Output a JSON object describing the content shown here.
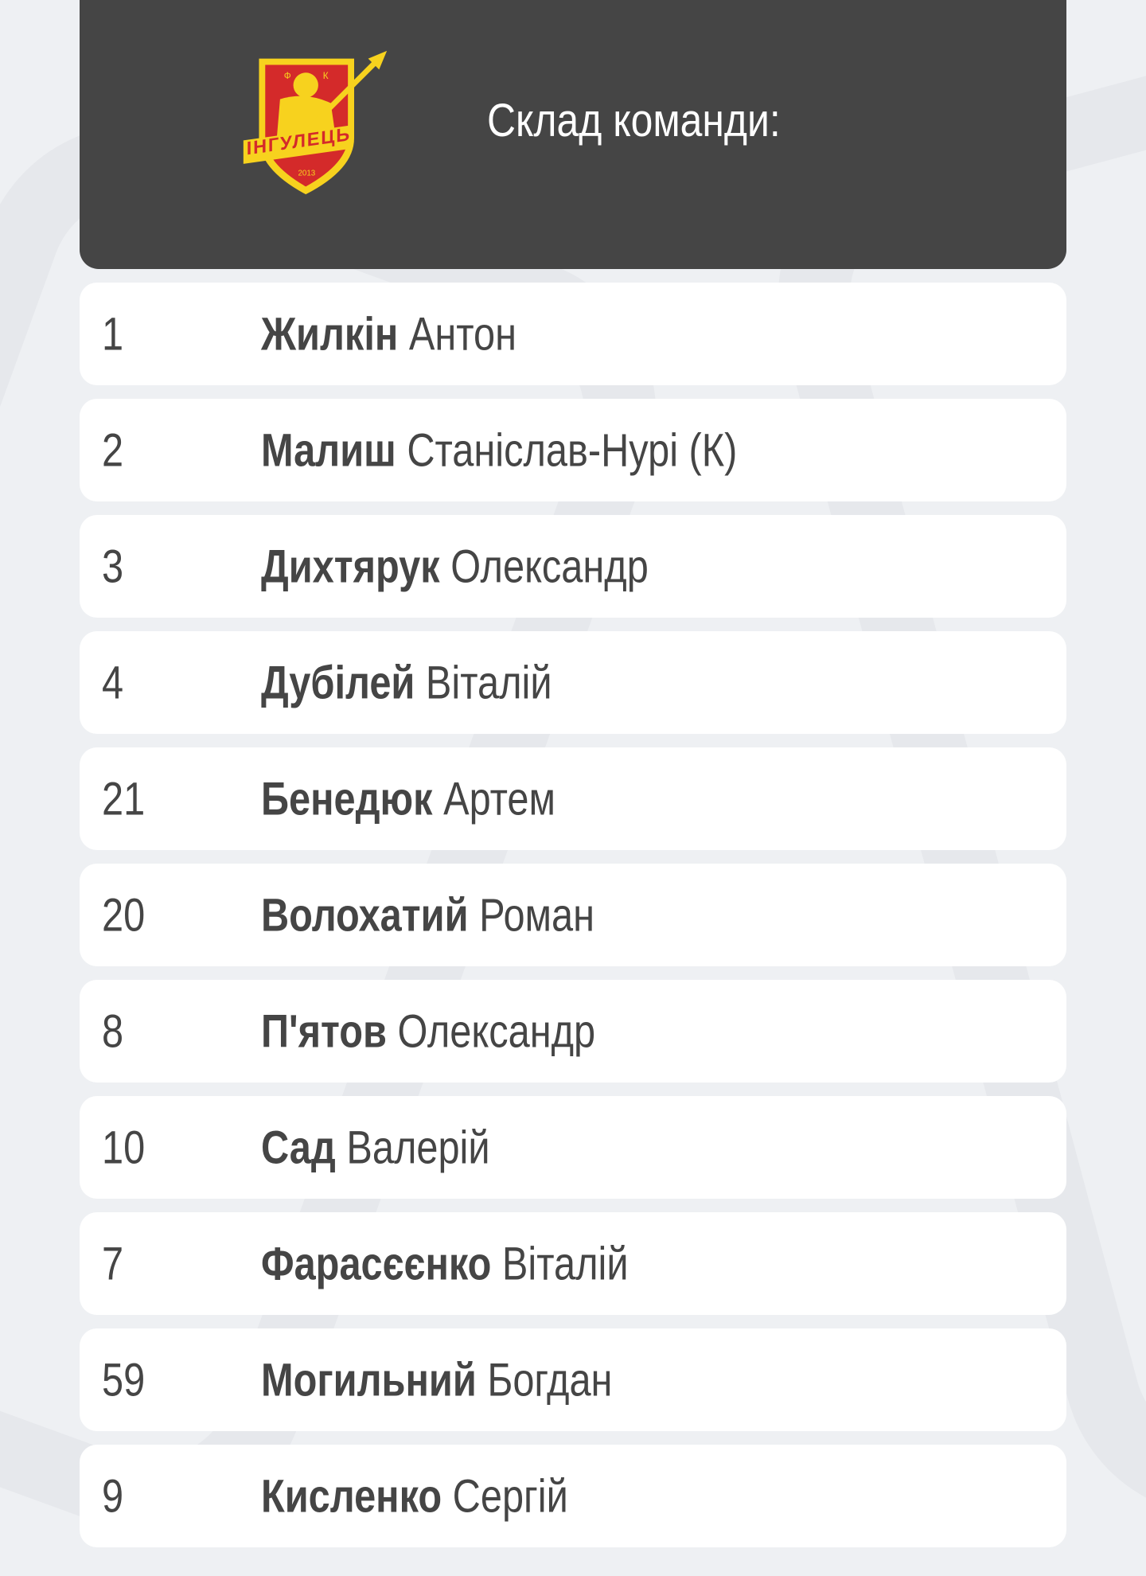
{
  "header": {
    "title": "Склад команди:",
    "logo": {
      "text": "ІНГУЛЕЦЬ",
      "initials": "Ф К",
      "year": "2013",
      "colors": {
        "red": "#d42a2a",
        "yellow": "#f7d21e"
      }
    }
  },
  "players": [
    {
      "number": "1",
      "surname": "Жилкін",
      "first_name": "Антон"
    },
    {
      "number": "2",
      "surname": "Малиш",
      "first_name": "Станіслав-Нурі (К)"
    },
    {
      "number": "3",
      "surname": "Дихтярук",
      "first_name": "Олександр"
    },
    {
      "number": "4",
      "surname": "Дубілей",
      "first_name": "Віталій"
    },
    {
      "number": "21",
      "surname": "Бенедюк",
      "first_name": "Артем"
    },
    {
      "number": "20",
      "surname": "Волохатий",
      "first_name": "Роман"
    },
    {
      "number": "8",
      "surname": "П'ятов",
      "first_name": "Олександр"
    },
    {
      "number": "10",
      "surname": "Сад",
      "first_name": "Валерій"
    },
    {
      "number": "7",
      "surname": "Фарасєєнко",
      "first_name": "Віталій"
    },
    {
      "number": "59",
      "surname": "Могильний",
      "first_name": "Богдан"
    },
    {
      "number": "9",
      "surname": "Кисленко",
      "first_name": "Сергій"
    }
  ],
  "colors": {
    "header_bg": "#454545",
    "text": "#454545",
    "page_bg": "#eef0f3"
  }
}
